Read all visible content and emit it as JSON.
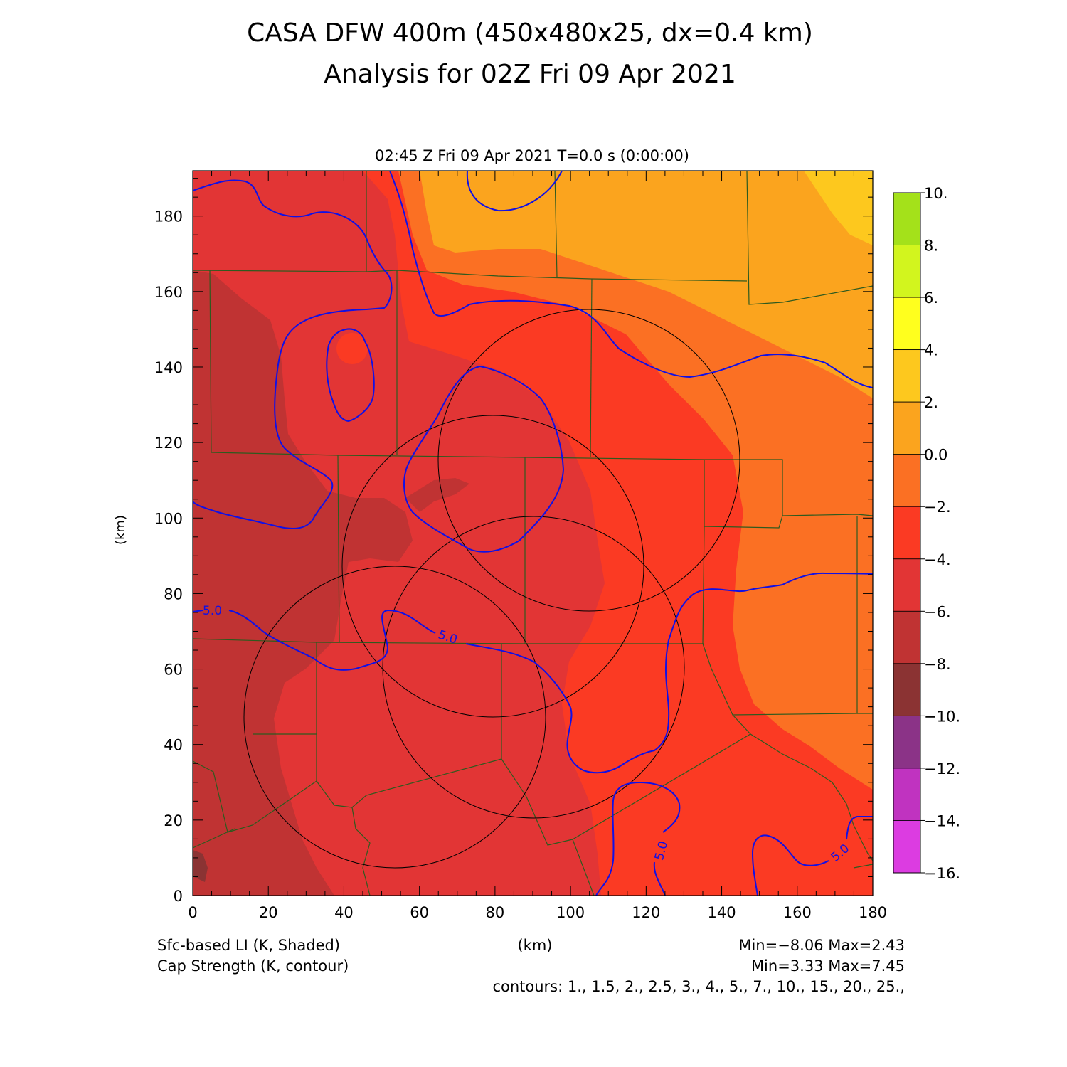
{
  "title": {
    "line1": "CASA DFW 400m (450x480x25, dx=0.4 km)",
    "line2": "Analysis for 02Z Fri 09 Apr 2021"
  },
  "time_label": "02:45 Z Fri 09 Apr 2021   T=0.0 s (0:00:00)",
  "axes": {
    "x_label": "(km)",
    "y_label": "(km)",
    "x_ticks": [
      "0",
      "20",
      "40",
      "60",
      "80",
      "100",
      "120",
      "140",
      "160",
      "180"
    ],
    "y_ticks": [
      "0",
      "20",
      "40",
      "60",
      "80",
      "100",
      "120",
      "140",
      "160",
      "180"
    ],
    "x_range": [
      0,
      180
    ],
    "y_range": [
      0,
      192
    ]
  },
  "colorbar": {
    "labels": [
      "10.",
      "8.",
      "6.",
      "4.",
      "2.",
      "0.0",
      "−2.",
      "−4.",
      "−6.",
      "−8.",
      "−10.",
      "−12.",
      "−14.",
      "−16."
    ],
    "bins": [
      {
        "range": [
          8,
          10
        ],
        "color": "#a4e11a"
      },
      {
        "range": [
          6,
          8
        ],
        "color": "#d2f51e"
      },
      {
        "range": [
          4,
          6
        ],
        "color": "#ffff1e"
      },
      {
        "range": [
          2,
          4
        ],
        "color": "#fdc81e"
      },
      {
        "range": [
          0,
          2
        ],
        "color": "#fba41e"
      },
      {
        "range": [
          -2,
          0
        ],
        "color": "#fb7023"
      },
      {
        "range": [
          -4,
          -2
        ],
        "color": "#fb3a23"
      },
      {
        "range": [
          -6,
          -4
        ],
        "color": "#e23535"
      },
      {
        "range": [
          -8,
          -6
        ],
        "color": "#c03333"
      },
      {
        "range": [
          -10,
          -8
        ],
        "color": "#8b3333"
      },
      {
        "range": [
          -12,
          -10
        ],
        "color": "#8b3387"
      },
      {
        "range": [
          -14,
          -12
        ],
        "color": "#c033c0"
      },
      {
        "range": [
          -16,
          -14
        ],
        "color": "#dc3ce1"
      }
    ]
  },
  "footer": {
    "field1": "Sfc-based LI (K, Shaded)",
    "field2": "Cap Strength (K, contour)",
    "units": "(km)",
    "stats1": "Min=−8.06 Max=2.43",
    "stats2": "Min=3.33 Max=7.45",
    "contours": "contours: 1., 1.5, 2., 2.5, 3., 4., 5., 7., 10., 15., 20., 25.,"
  },
  "contour_labels": [
    "5.0",
    "5.0",
    "5.0",
    "5.0"
  ],
  "colors": {
    "contour": "#1010e6",
    "county": "#2e5a1e",
    "radar_ring": "#000000"
  }
}
